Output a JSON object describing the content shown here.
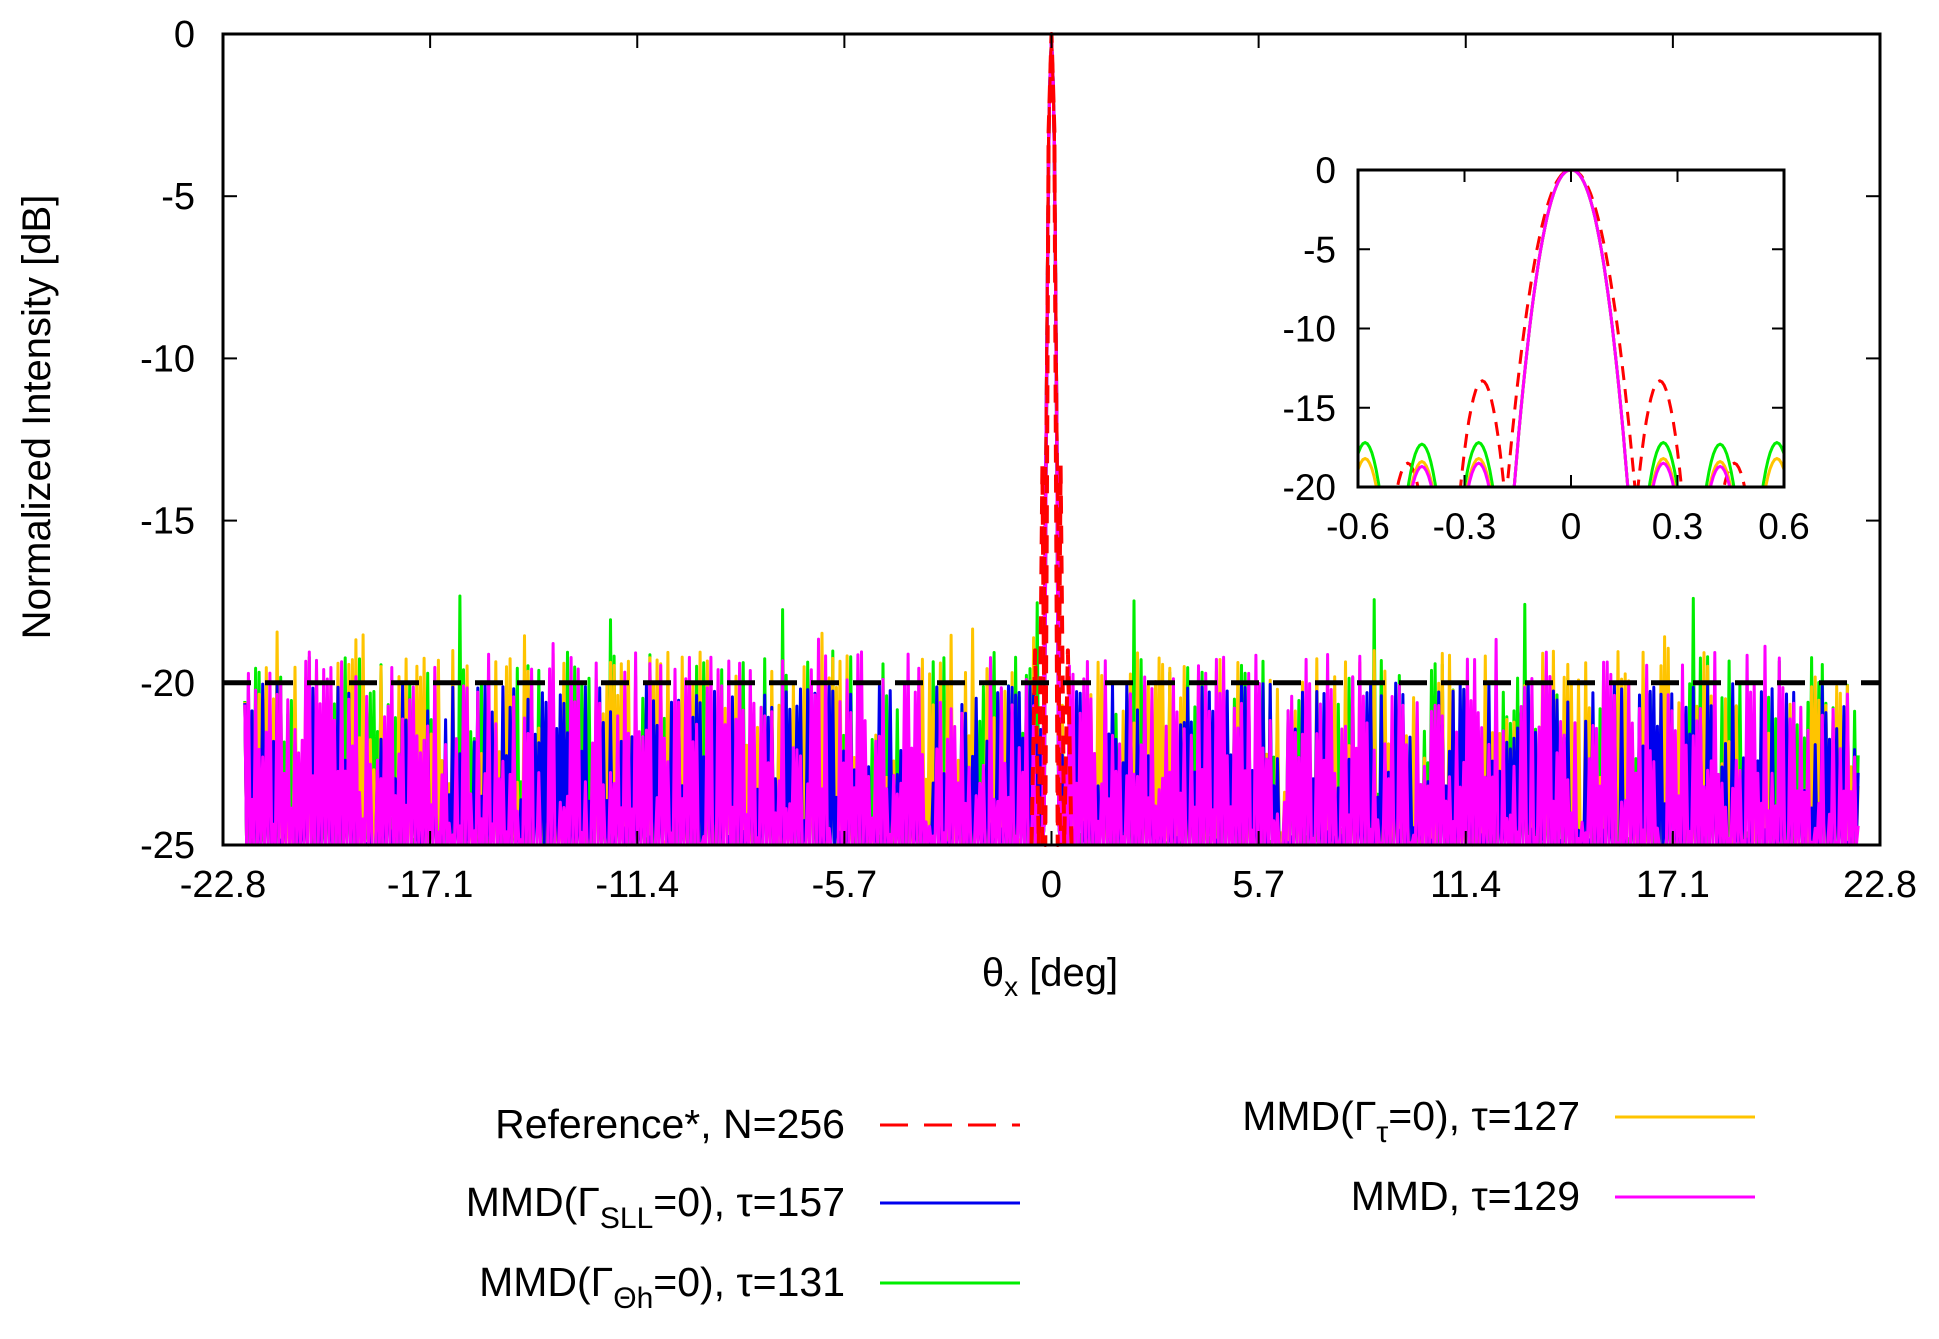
{
  "chart_data": [
    {
      "type": "line",
      "title": "",
      "xlabel": "θx [deg]",
      "xlabel_parts": {
        "symbol": "θ",
        "sub": "x",
        "rest": " [deg]"
      },
      "ylabel": "Normalized Intensity [dB]",
      "xlim": [
        -22.8,
        22.8
      ],
      "ylim": [
        -25,
        0
      ],
      "xticks": [
        -22.8,
        -17.1,
        -11.4,
        -5.7,
        0,
        5.7,
        11.4,
        17.1,
        22.8
      ],
      "xtick_labels": [
        "-22.8",
        "-17.1",
        "-11.4",
        "-5.7",
        "0",
        "5.7",
        "11.4",
        "17.1",
        "22.8"
      ],
      "yticks": [
        0,
        -5,
        -10,
        -15,
        -20,
        -25
      ],
      "ytick_labels": [
        "0",
        "-5",
        "-10",
        "-15",
        "-20",
        "-25"
      ],
      "threshold_line": {
        "y": -20,
        "color": "#000000",
        "style": "dashed"
      },
      "legend_placement": "bottom, two columns",
      "series": [
        {
          "key": "ref",
          "name": "Reference*, N=256",
          "color": "#ff0000",
          "style": "dashed",
          "description_values": {
            "mainlobe_peak_db": 0,
            "first_sidelobe_db": -13.3,
            "first_sidelobe_x_deg": 0.25
          }
        },
        {
          "key": "sll",
          "name": "MMD(ΓSLL=0), τ=157",
          "color": "#0000ee",
          "style": "solid",
          "description_values": {
            "mainlobe_peak_db": 0,
            "peak_sidelobe_db": -20.0
          }
        },
        {
          "key": "theta",
          "name": "MMD(ΓΘh=0), τ=131",
          "color": "#00ee00",
          "style": "solid",
          "description_values": {
            "mainlobe_peak_db": 0,
            "peak_sidelobe_db": -17.3
          }
        },
        {
          "key": "tau",
          "name": "MMD(Γτ=0), τ=127",
          "color": "#ffc400",
          "style": "solid",
          "description_values": {
            "mainlobe_peak_db": 0,
            "peak_sidelobe_db": -18.3
          }
        },
        {
          "key": "mmd",
          "name": "MMD, τ=129",
          "color": "#ff00ff",
          "style": "solid",
          "description_values": {
            "mainlobe_peak_db": 0,
            "peak_sidelobe_db": -18.5
          }
        }
      ]
    },
    {
      "type": "line",
      "title": "",
      "inset": true,
      "xlim": [
        -0.6,
        0.6
      ],
      "ylim": [
        -20,
        0
      ],
      "xticks": [
        -0.6,
        -0.3,
        0,
        0.3,
        0.6
      ],
      "xtick_labels": [
        "-0.6",
        "-0.3",
        "0",
        "0.3",
        "0.6"
      ],
      "yticks": [
        0,
        -5,
        -10,
        -15,
        -20
      ],
      "ytick_labels": [
        "0",
        "-5",
        "-10",
        "-15",
        "-20"
      ],
      "series": [
        {
          "key": "ref",
          "mainlobe_halfwidth_deg": 0.18,
          "sidelobes": [
            {
              "x": 0.25,
              "y": -13.3
            },
            {
              "x": -0.25,
              "y": -13.3
            },
            {
              "x": 0.46,
              "y": -18.5
            },
            {
              "x": -0.46,
              "y": -18.5
            }
          ]
        },
        {
          "key": "sll",
          "mainlobe_halfwidth_deg": 0.16,
          "sidelobes": []
        },
        {
          "key": "theta",
          "mainlobe_halfwidth_deg": 0.16,
          "sidelobes": [
            {
              "x": 0.26,
              "y": -17.2
            },
            {
              "x": -0.26,
              "y": -17.2
            },
            {
              "x": 0.42,
              "y": -17.3
            },
            {
              "x": -0.42,
              "y": -17.3
            },
            {
              "x": 0.58,
              "y": -17.2
            },
            {
              "x": -0.58,
              "y": -17.2
            }
          ]
        },
        {
          "key": "tau",
          "mainlobe_halfwidth_deg": 0.16,
          "sidelobes": [
            {
              "x": 0.26,
              "y": -18.2
            },
            {
              "x": -0.26,
              "y": -18.2
            },
            {
              "x": 0.42,
              "y": -18.4
            },
            {
              "x": -0.42,
              "y": -18.4
            },
            {
              "x": 0.58,
              "y": -18.2
            },
            {
              "x": -0.58,
              "y": -18.2
            }
          ]
        },
        {
          "key": "mmd",
          "mainlobe_halfwidth_deg": 0.16,
          "sidelobes": [
            {
              "x": 0.26,
              "y": -18.5
            },
            {
              "x": -0.26,
              "y": -18.5
            },
            {
              "x": 0.42,
              "y": -18.7
            },
            {
              "x": -0.42,
              "y": -18.7
            }
          ]
        }
      ]
    }
  ],
  "legend": [
    {
      "key": "ref",
      "prefix": "Reference*, N=256",
      "sub": "",
      "suffix": "",
      "sym": ""
    },
    {
      "key": "sll",
      "prefix": "MMD(",
      "sym": "Γ",
      "sub": "SLL",
      "suffix": "=0), τ=157"
    },
    {
      "key": "theta",
      "prefix": "MMD(",
      "sym": "Γ",
      "sub": "Θh",
      "suffix": "=0), τ=131"
    },
    {
      "key": "tau",
      "prefix": "MMD(",
      "sym": "Γ",
      "sub": "τ",
      "suffix": "=0), τ=127"
    },
    {
      "key": "mmd",
      "prefix": "MMD, τ=129",
      "sym": "",
      "sub": "",
      "suffix": ""
    }
  ]
}
